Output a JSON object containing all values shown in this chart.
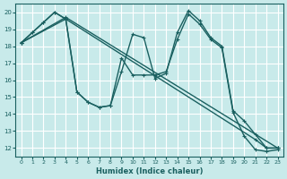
{
  "xlabel": "Humidex (Indice chaleur)",
  "xlim": [
    -0.5,
    23.5
  ],
  "ylim": [
    11.5,
    20.5
  ],
  "xticks": [
    0,
    1,
    2,
    3,
    4,
    5,
    6,
    7,
    8,
    9,
    10,
    11,
    12,
    13,
    14,
    15,
    16,
    17,
    18,
    19,
    20,
    21,
    22,
    23
  ],
  "yticks": [
    12,
    13,
    14,
    15,
    16,
    17,
    18,
    19,
    20
  ],
  "bg_color": "#c8eaea",
  "grid_color": "#ffffff",
  "line_color": "#1a6060",
  "line_width": 1.0,
  "marker": "+",
  "marker_size": 3.5,
  "line1_x": [
    0,
    1,
    2,
    3,
    4,
    5,
    6,
    7,
    8,
    9,
    10,
    11,
    12,
    13,
    14,
    15,
    16,
    17,
    18,
    19,
    20,
    21,
    22,
    23
  ],
  "line1_y": [
    18.2,
    18.8,
    19.4,
    20.0,
    19.6,
    15.3,
    14.7,
    14.4,
    14.5,
    16.5,
    18.7,
    18.5,
    16.1,
    16.4,
    18.8,
    20.1,
    19.5,
    18.5,
    18.0,
    14.2,
    13.6,
    12.8,
    12.0,
    12.0
  ],
  "line2_x": [
    0,
    1,
    2,
    3,
    4,
    5,
    6,
    7,
    8,
    9,
    10,
    11,
    12,
    13,
    14,
    15,
    16,
    17,
    18,
    19,
    20,
    21,
    22,
    23
  ],
  "line2_y": [
    18.2,
    18.8,
    19.4,
    20.0,
    19.6,
    15.3,
    14.7,
    14.4,
    14.5,
    17.3,
    16.3,
    16.3,
    16.3,
    16.5,
    18.4,
    19.9,
    19.3,
    18.4,
    17.9,
    14.1,
    12.7,
    11.9,
    11.8,
    11.9
  ],
  "line3_x": [
    0,
    4,
    23
  ],
  "line3_y": [
    18.2,
    19.7,
    12.0
  ],
  "line4_x": [
    0,
    4,
    21,
    22,
    23
  ],
  "line4_y": [
    18.2,
    19.6,
    12.5,
    12.0,
    12.0
  ]
}
